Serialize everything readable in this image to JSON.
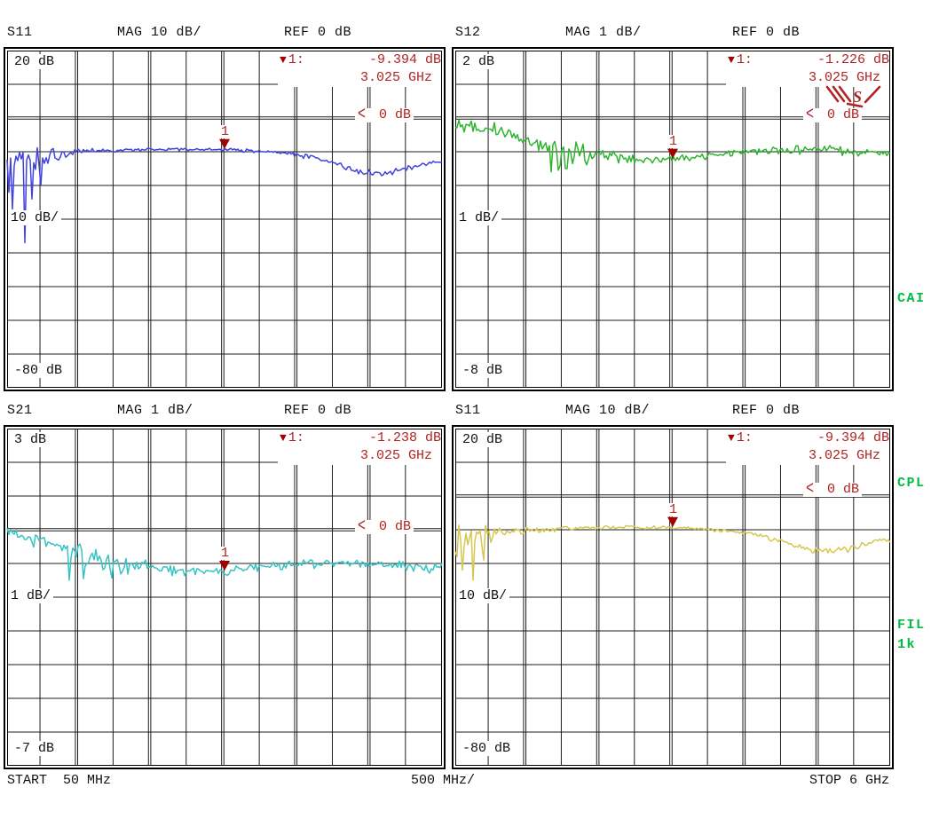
{
  "footer": {
    "start": "START  50 MHz",
    "per_div": "500 MHz/",
    "stop": "STOP 6 GHz"
  },
  "annunciators": [
    {
      "label": "CAI"
    },
    {
      "label": "CPL"
    },
    {
      "label": "FIL"
    },
    {
      "label": "1k"
    }
  ],
  "colors": {
    "marker_text": "#b22222",
    "marker_symbol": "#a00000",
    "annunciator_green": "#00bb44",
    "grid": "#1c1c1c"
  },
  "signature_icon": {
    "name": "red-scribble-signature",
    "color": "#b22222"
  },
  "chart_data": [
    {
      "type": "line",
      "position": "top-left",
      "title": "S11",
      "scale_label": "MAG 10 dB/",
      "ref_label": "REF 0 dB",
      "y_top_label": "20 dB",
      "y_scale_label": "10 dB/",
      "y_bottom_label": "-80 dB",
      "ylim": [
        -80,
        20
      ],
      "db_per_div": 10,
      "ref_db": 0,
      "x_range_ghz": [
        0.05,
        6
      ],
      "x_grid_step_ghz": 0.5,
      "x_axis": {
        "start": "50 MHz",
        "stop": "6 GHz",
        "per_div": "500 MHz"
      },
      "ref_indicator": {
        "symbol": "<",
        "label": "0 dB"
      },
      "marker": {
        "symbol": "▼",
        "id": "1",
        "readout_label": "1:",
        "value": "-9.394 dB",
        "freq": "3.025 GHz",
        "freq_ghz": 3.025,
        "value_db": -9.394
      },
      "series": [
        {
          "name": "S11",
          "color": "#4143e0",
          "seed": 11,
          "noise_bias": 0.4,
          "anchors_ghz_db": [
            [
              0.05,
              -12.5
            ],
            [
              0.1,
              -12.2
            ],
            [
              0.2,
              -12.0
            ],
            [
              0.3,
              -11.8
            ],
            [
              0.45,
              -11.2
            ],
            [
              0.6,
              -10.8
            ],
            [
              0.8,
              -10.4
            ],
            [
              1.0,
              -10.1
            ],
            [
              1.3,
              -9.7
            ],
            [
              1.6,
              -9.5
            ],
            [
              2.0,
              -9.3
            ],
            [
              2.4,
              -9.2
            ],
            [
              2.8,
              -9.3
            ],
            [
              3.025,
              -9.394
            ],
            [
              3.3,
              -9.6
            ],
            [
              3.6,
              -10.0
            ],
            [
              3.9,
              -10.6
            ],
            [
              4.2,
              -11.6
            ],
            [
              4.5,
              -13.2
            ],
            [
              4.8,
              -15.2
            ],
            [
              5.05,
              -16.3
            ],
            [
              5.3,
              -16.0
            ],
            [
              5.5,
              -15.2
            ],
            [
              5.7,
              -13.9
            ],
            [
              5.95,
              -13.0
            ]
          ],
          "noise_ghz_db": [
            [
              0.05,
              5.0
            ],
            [
              0.3,
              4.5
            ],
            [
              0.5,
              3.0
            ],
            [
              0.8,
              1.5
            ],
            [
              1.2,
              0.9
            ],
            [
              1.8,
              0.5
            ],
            [
              3.5,
              0.5
            ],
            [
              4.2,
              0.8
            ],
            [
              5.0,
              1.0
            ],
            [
              5.95,
              0.9
            ]
          ],
          "spikes_ghz_db": [
            [
              0.07,
              -22
            ],
            [
              0.13,
              -27
            ],
            [
              0.29,
              -37
            ],
            [
              0.38,
              -24
            ],
            [
              0.52,
              -20
            ]
          ]
        }
      ]
    },
    {
      "type": "line",
      "position": "top-right",
      "title": "S12",
      "scale_label": "MAG 1 dB/",
      "ref_label": "REF 0 dB",
      "y_top_label": "2 dB",
      "y_scale_label": "1 dB/",
      "y_bottom_label": "-8 dB",
      "ylim": [
        -8,
        2
      ],
      "db_per_div": 1,
      "ref_db": 0,
      "x_range_ghz": [
        0.05,
        6
      ],
      "x_grid_step_ghz": 0.5,
      "x_axis": {
        "start": "50 MHz",
        "stop": "6 GHz",
        "per_div": "500 MHz"
      },
      "ref_indicator": {
        "symbol": "<",
        "label": "0 dB"
      },
      "marker": {
        "symbol": "▼",
        "id": "1",
        "readout_label": "1:",
        "value": "-1.226 dB",
        "freq": "3.025 GHz",
        "freq_ghz": 3.025,
        "value_db": -1.226
      },
      "series": [
        {
          "name": "S12",
          "color": "#2eb42e",
          "seed": 22,
          "noise_bias": 0.25,
          "anchors_ghz_db": [
            [
              0.05,
              -0.15
            ],
            [
              0.2,
              -0.22
            ],
            [
              0.4,
              -0.3
            ],
            [
              0.6,
              -0.35
            ],
            [
              0.8,
              -0.5
            ],
            [
              1.0,
              -0.6
            ],
            [
              1.2,
              -0.75
            ],
            [
              1.45,
              -0.95
            ],
            [
              1.7,
              -1.05
            ],
            [
              2.0,
              -1.1
            ],
            [
              2.4,
              -1.18
            ],
            [
              2.8,
              -1.22
            ],
            [
              3.025,
              -1.226
            ],
            [
              3.3,
              -1.15
            ],
            [
              3.7,
              -1.05
            ],
            [
              4.1,
              -1.0
            ],
            [
              4.5,
              -0.95
            ],
            [
              4.9,
              -0.92
            ],
            [
              5.3,
              -0.95
            ],
            [
              5.6,
              -1.0
            ],
            [
              5.95,
              -1.05
            ]
          ],
          "noise_ghz_db": [
            [
              0.05,
              0.18
            ],
            [
              0.5,
              0.22
            ],
            [
              1.0,
              0.3
            ],
            [
              1.4,
              0.5
            ],
            [
              1.8,
              0.35
            ],
            [
              2.2,
              0.2
            ],
            [
              2.8,
              0.12
            ],
            [
              4.0,
              0.12
            ],
            [
              5.0,
              0.15
            ],
            [
              5.95,
              0.12
            ]
          ],
          "spikes_ghz_db": [
            [
              1.35,
              -1.6
            ],
            [
              1.45,
              -1.55
            ],
            [
              1.55,
              -1.5
            ]
          ]
        }
      ]
    },
    {
      "type": "line",
      "position": "bottom-left",
      "title": "S21",
      "scale_label": "MAG 1 dB/",
      "ref_label": "REF 0 dB",
      "y_top_label": "3 dB",
      "y_scale_label": "1 dB/",
      "y_bottom_label": "-7 dB",
      "ylim": [
        -7,
        3
      ],
      "db_per_div": 1,
      "ref_db": 0,
      "x_range_ghz": [
        0.05,
        6
      ],
      "x_grid_step_ghz": 0.5,
      "x_axis": {
        "start": "50 MHz",
        "stop": "6 GHz",
        "per_div": "500 MHz"
      },
      "ref_indicator": {
        "symbol": "<",
        "label": "0 dB"
      },
      "marker": {
        "symbol": "▼",
        "id": "1",
        "readout_label": "1:",
        "value": "-1.238 dB",
        "freq": "3.025 GHz",
        "freq_ghz": 3.025,
        "value_db": -1.238
      },
      "series": [
        {
          "name": "S21",
          "color": "#35c4c4",
          "seed": 33,
          "noise_bias": 0.25,
          "anchors_ghz_db": [
            [
              0.05,
              -0.12
            ],
            [
              0.3,
              -0.2
            ],
            [
              0.6,
              -0.4
            ],
            [
              0.9,
              -0.6
            ],
            [
              1.2,
              -0.8
            ],
            [
              1.5,
              -1.0
            ],
            [
              1.9,
              -1.12
            ],
            [
              2.3,
              -1.2
            ],
            [
              2.7,
              -1.22
            ],
            [
              3.025,
              -1.238
            ],
            [
              3.4,
              -1.12
            ],
            [
              3.8,
              -1.05
            ],
            [
              4.2,
              -1.0
            ],
            [
              4.6,
              -0.98
            ],
            [
              5.0,
              -1.0
            ],
            [
              5.4,
              -1.05
            ],
            [
              5.95,
              -1.12
            ]
          ],
          "noise_ghz_db": [
            [
              0.05,
              0.2
            ],
            [
              0.6,
              0.25
            ],
            [
              1.0,
              0.35
            ],
            [
              1.5,
              0.4
            ],
            [
              2.0,
              0.25
            ],
            [
              2.5,
              0.15
            ],
            [
              3.5,
              0.12
            ],
            [
              5.0,
              0.15
            ],
            [
              5.95,
              0.15
            ]
          ],
          "spikes_ghz_db": [
            [
              0.9,
              -1.5
            ],
            [
              1.1,
              -1.45
            ]
          ]
        }
      ]
    },
    {
      "type": "line",
      "position": "bottom-right",
      "title": "S11",
      "scale_label": "MAG 10 dB/",
      "ref_label": "REF 0 dB",
      "y_top_label": "20 dB",
      "y_scale_label": "10 dB/",
      "y_bottom_label": "-80 dB",
      "ylim": [
        -80,
        20
      ],
      "db_per_div": 10,
      "ref_db": 0,
      "x_range_ghz": [
        0.05,
        6
      ],
      "x_grid_step_ghz": 0.5,
      "x_axis": {
        "start": "50 MHz",
        "stop": "6 GHz",
        "per_div": "500 MHz"
      },
      "ref_indicator": {
        "symbol": "<",
        "label": "0 dB"
      },
      "marker": {
        "symbol": "▼",
        "id": "1",
        "readout_label": "1:",
        "value": "-9.394 dB",
        "freq": "3.025 GHz",
        "freq_ghz": 3.025,
        "value_db": -9.394
      },
      "series": [
        {
          "name": "S11",
          "color": "#d6c84e",
          "seed": 47,
          "noise_bias": 0.4,
          "anchors_ghz_db": [
            [
              0.05,
              -12.5
            ],
            [
              0.1,
              -12.2
            ],
            [
              0.2,
              -12.0
            ],
            [
              0.3,
              -11.8
            ],
            [
              0.45,
              -11.2
            ],
            [
              0.6,
              -10.8
            ],
            [
              0.8,
              -10.4
            ],
            [
              1.0,
              -10.1
            ],
            [
              1.3,
              -9.7
            ],
            [
              1.6,
              -9.5
            ],
            [
              2.0,
              -9.3
            ],
            [
              2.4,
              -9.2
            ],
            [
              2.8,
              -9.3
            ],
            [
              3.025,
              -9.394
            ],
            [
              3.3,
              -9.6
            ],
            [
              3.6,
              -10.0
            ],
            [
              3.9,
              -10.6
            ],
            [
              4.2,
              -11.6
            ],
            [
              4.5,
              -13.2
            ],
            [
              4.8,
              -15.2
            ],
            [
              5.05,
              -16.3
            ],
            [
              5.3,
              -16.0
            ],
            [
              5.5,
              -15.2
            ],
            [
              5.7,
              -13.9
            ],
            [
              5.95,
              -13.0
            ]
          ],
          "noise_ghz_db": [
            [
              0.05,
              4.0
            ],
            [
              0.3,
              3.5
            ],
            [
              0.5,
              2.5
            ],
            [
              0.8,
              1.4
            ],
            [
              1.2,
              0.9
            ],
            [
              1.8,
              0.5
            ],
            [
              3.5,
              0.5
            ],
            [
              4.2,
              0.8
            ],
            [
              5.0,
              1.0
            ],
            [
              5.95,
              0.9
            ]
          ],
          "spikes_ghz_db": [
            [
              0.08,
              -18
            ],
            [
              0.14,
              -22
            ],
            [
              0.3,
              -25
            ],
            [
              0.45,
              -19
            ]
          ]
        }
      ]
    }
  ]
}
